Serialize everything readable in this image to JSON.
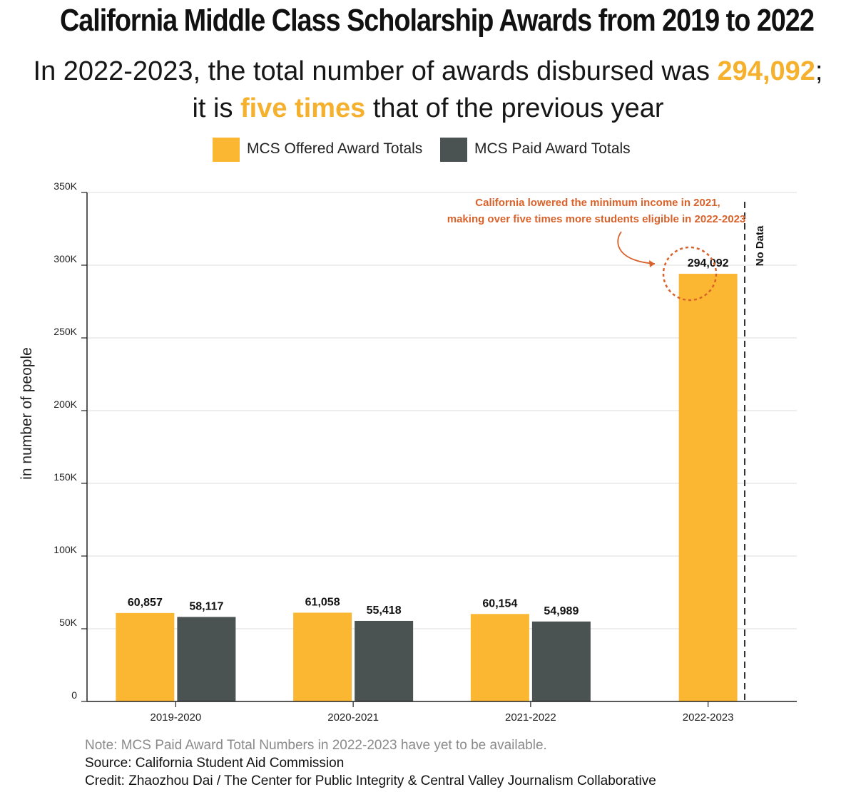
{
  "title": "California Middle Class Scholarship Awards from 2019 to 2022",
  "subtitle": {
    "line1_a": "In 2022-2023, the total number of awards disbursed was ",
    "line1_hl": "294,092",
    "line1_b": ";",
    "line2_a": "it is ",
    "line2_hl": "five times",
    "line2_b": " that of the previous year"
  },
  "legend": [
    {
      "label": "MCS Offered Award Totals",
      "color": "#FBB731"
    },
    {
      "label": "MCS Paid Award Totals",
      "color": "#4A5352"
    }
  ],
  "annotation": {
    "line1": "California lowered the minimum income in 2021,",
    "line2": "making over five times more students eligible in 2022-2023",
    "color": "#D9622B",
    "no_data": "No Data"
  },
  "footer": {
    "note": "Note: MCS Paid Award Total Numbers in 2022-2023 have yet to be available.",
    "source": "Source: California Student Aid Commission",
    "credit": "Credit: Zhaozhou Dai / The Center for Public Integrity & Central Valley Journalism Collaborative"
  },
  "chart_data": {
    "type": "bar",
    "ylabel": "in number of people",
    "ylim": [
      0,
      350000
    ],
    "yticks": [
      0,
      50000,
      100000,
      150000,
      200000,
      250000,
      300000,
      350000
    ],
    "ytick_labels": [
      "0",
      "50K",
      "100K",
      "150K",
      "200K",
      "250K",
      "300K",
      "350K"
    ],
    "grid": true,
    "legend_position": "top",
    "categories": [
      "2019-2020",
      "2020-2021",
      "2021-2022",
      "2022-2023"
    ],
    "series": [
      {
        "name": "MCS Offered Award Totals",
        "color": "#FBB731",
        "values": [
          60857,
          61058,
          60154,
          294092
        ],
        "labels": [
          "60,857",
          "61,058",
          "60,154",
          "294,092"
        ]
      },
      {
        "name": "MCS Paid Award Totals",
        "color": "#4A5352",
        "values": [
          58117,
          55418,
          54989,
          null
        ],
        "labels": [
          "58,117",
          "55,418",
          "54,989",
          ""
        ]
      }
    ]
  }
}
